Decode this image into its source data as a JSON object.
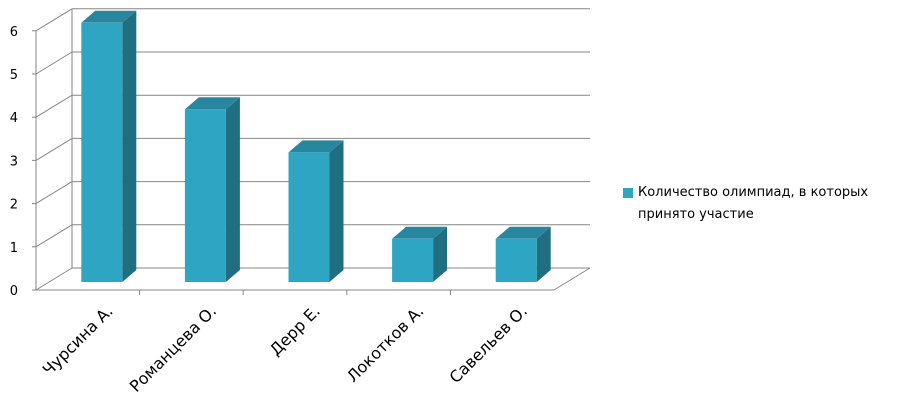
{
  "chart_data": {
    "type": "bar",
    "title": "",
    "xlabel": "",
    "ylabel": "",
    "categories": [
      "Чурсина А.",
      "Романцева О.",
      "Дерр Е.",
      "Локотков А.",
      "Савельев О."
    ],
    "series": [
      {
        "name": "Количество олимпиад, в которых принято участие",
        "values": [
          6,
          4,
          3,
          1,
          1
        ]
      }
    ],
    "ylim": [
      0,
      6
    ],
    "yticks": [
      "0",
      "1",
      "2",
      "3",
      "4",
      "5",
      "6"
    ],
    "grid": true,
    "legend_position": "right",
    "colors": {
      "front": "#2ea6c3",
      "side": "#1f6f81",
      "top": "#28879f",
      "grid": "#868686"
    }
  }
}
